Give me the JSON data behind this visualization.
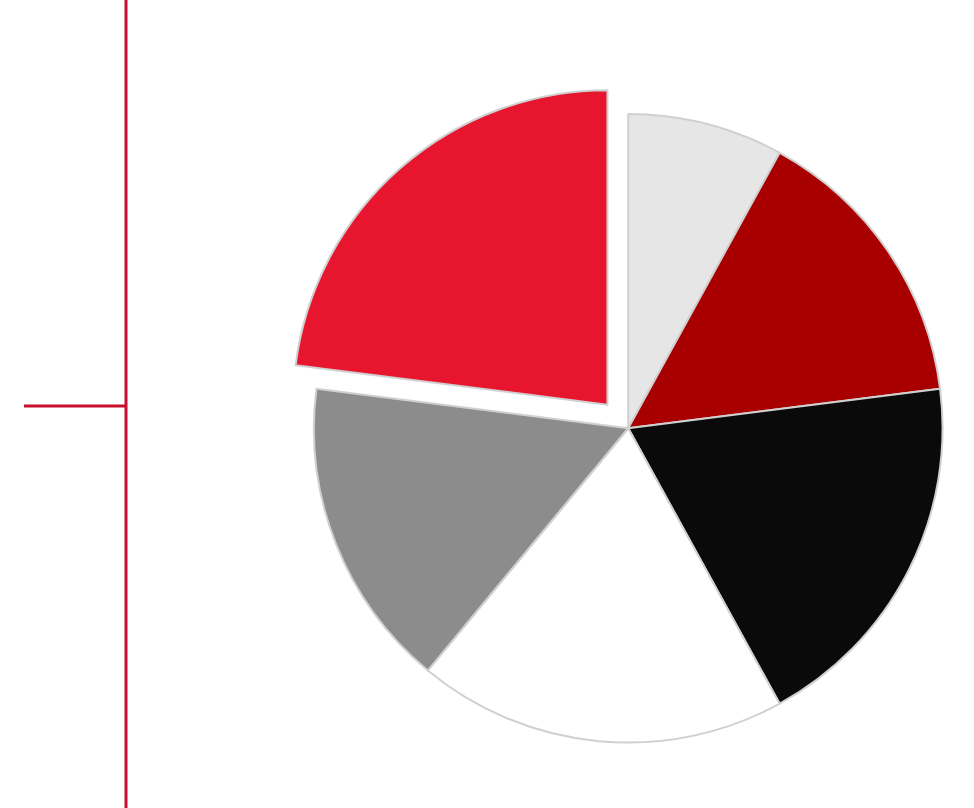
{
  "chart_data": {
    "type": "pie",
    "categories": [
      null,
      null,
      null,
      null,
      null,
      null
    ],
    "values": [
      8,
      15,
      19,
      19,
      16,
      23
    ],
    "colors": [
      "#e6e6e6",
      "#a80000",
      "#0a0a0a",
      "#ffffff",
      "#8c8c8c",
      "#e8152f"
    ],
    "legend": false
  }
}
